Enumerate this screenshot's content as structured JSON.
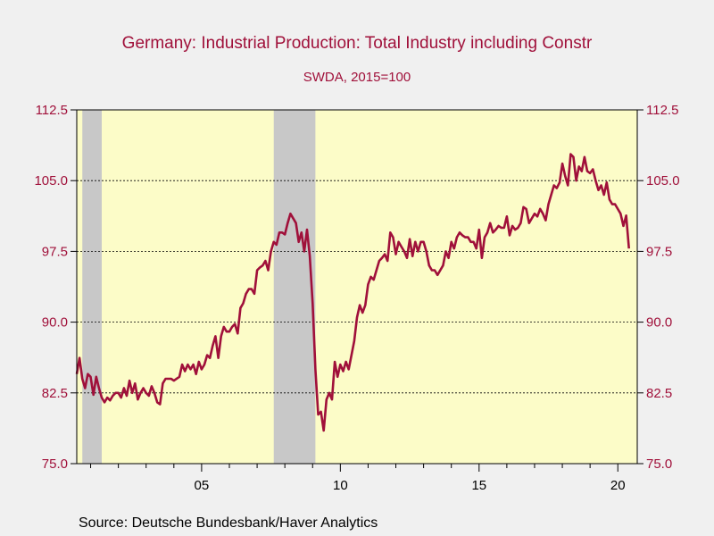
{
  "chart_data": {
    "type": "line",
    "title": "Germany: Industrial Production: Total Industry including Constr",
    "subtitle": "SWDA, 2015=100",
    "source": "Source:  Deutsche Bundesbank/Haver Analytics",
    "ylim": [
      75.0,
      112.5
    ],
    "yticks": [
      "75.0",
      "82.5",
      "90.0",
      "97.5",
      "105.0",
      "112.5"
    ],
    "y_axis_both_sides": true,
    "xlim": [
      2000.5,
      2020.7
    ],
    "xticks": [
      {
        "value": 2005,
        "label": "05"
      },
      {
        "value": 2010,
        "label": "10"
      },
      {
        "value": 2015,
        "label": "15"
      },
      {
        "value": 2020,
        "label": "20"
      }
    ],
    "grid": "horizontal dashed",
    "recessions": [
      [
        2000.7,
        2001.4
      ],
      [
        2007.6,
        2009.1
      ]
    ],
    "colors": {
      "line": "#a0103a",
      "plot_bg": "#fcfcc8",
      "recession": "#c8c8c8",
      "text": "#a0103a"
    },
    "series": [
      {
        "points": [
          [
            2000.5,
            84.5
          ],
          [
            2000.6,
            86.2
          ],
          [
            2000.7,
            84.0
          ],
          [
            2000.8,
            83.0
          ],
          [
            2000.9,
            84.5
          ],
          [
            2001.0,
            84.2
          ],
          [
            2001.1,
            82.3
          ],
          [
            2001.2,
            84.2
          ],
          [
            2001.3,
            83.0
          ],
          [
            2001.4,
            82.0
          ],
          [
            2001.5,
            81.5
          ],
          [
            2001.6,
            82.0
          ],
          [
            2001.7,
            81.7
          ],
          [
            2001.8,
            82.2
          ],
          [
            2001.9,
            82.5
          ],
          [
            2002.0,
            82.5
          ],
          [
            2002.1,
            82.0
          ],
          [
            2002.2,
            83.0
          ],
          [
            2002.3,
            82.2
          ],
          [
            2002.4,
            83.8
          ],
          [
            2002.5,
            82.5
          ],
          [
            2002.6,
            83.5
          ],
          [
            2002.7,
            81.8
          ],
          [
            2002.8,
            82.5
          ],
          [
            2002.9,
            83.0
          ],
          [
            2003.0,
            82.5
          ],
          [
            2003.1,
            82.2
          ],
          [
            2003.2,
            83.2
          ],
          [
            2003.3,
            82.5
          ],
          [
            2003.4,
            81.5
          ],
          [
            2003.5,
            81.3
          ],
          [
            2003.6,
            83.5
          ],
          [
            2003.7,
            84.0
          ],
          [
            2003.8,
            84.0
          ],
          [
            2003.9,
            84.0
          ],
          [
            2004.0,
            83.8
          ],
          [
            2004.2,
            84.2
          ],
          [
            2004.3,
            85.5
          ],
          [
            2004.4,
            84.8
          ],
          [
            2004.5,
            85.5
          ],
          [
            2004.6,
            85.0
          ],
          [
            2004.7,
            85.5
          ],
          [
            2004.8,
            84.5
          ],
          [
            2004.9,
            85.8
          ],
          [
            2005.0,
            85.0
          ],
          [
            2005.1,
            85.5
          ],
          [
            2005.2,
            86.5
          ],
          [
            2005.3,
            86.2
          ],
          [
            2005.4,
            87.5
          ],
          [
            2005.5,
            88.5
          ],
          [
            2005.6,
            86.2
          ],
          [
            2005.7,
            88.5
          ],
          [
            2005.8,
            89.5
          ],
          [
            2005.9,
            89.0
          ],
          [
            2006.0,
            89.0
          ],
          [
            2006.1,
            89.5
          ],
          [
            2006.2,
            89.8
          ],
          [
            2006.3,
            88.8
          ],
          [
            2006.4,
            91.5
          ],
          [
            2006.5,
            92.0
          ],
          [
            2006.6,
            93.0
          ],
          [
            2006.7,
            93.5
          ],
          [
            2006.8,
            93.5
          ],
          [
            2006.9,
            93.0
          ],
          [
            2007.0,
            95.5
          ],
          [
            2007.1,
            95.8
          ],
          [
            2007.2,
            96.0
          ],
          [
            2007.3,
            96.5
          ],
          [
            2007.4,
            95.5
          ],
          [
            2007.5,
            97.5
          ],
          [
            2007.6,
            98.5
          ],
          [
            2007.7,
            98.2
          ],
          [
            2007.8,
            99.5
          ],
          [
            2007.9,
            99.5
          ],
          [
            2008.0,
            99.3
          ],
          [
            2008.1,
            100.5
          ],
          [
            2008.2,
            101.5
          ],
          [
            2008.3,
            101.0
          ],
          [
            2008.4,
            100.5
          ],
          [
            2008.5,
            98.5
          ],
          [
            2008.6,
            99.5
          ],
          [
            2008.7,
            97.5
          ],
          [
            2008.8,
            99.8
          ],
          [
            2008.9,
            97.0
          ],
          [
            2009.0,
            92.0
          ],
          [
            2009.1,
            85.0
          ],
          [
            2009.2,
            80.2
          ],
          [
            2009.3,
            80.5
          ],
          [
            2009.4,
            78.5
          ],
          [
            2009.5,
            81.8
          ],
          [
            2009.6,
            82.5
          ],
          [
            2009.7,
            81.8
          ],
          [
            2009.8,
            85.8
          ],
          [
            2009.9,
            84.2
          ],
          [
            2010.0,
            85.5
          ],
          [
            2010.1,
            84.8
          ],
          [
            2010.2,
            85.8
          ],
          [
            2010.3,
            85.0
          ],
          [
            2010.4,
            86.5
          ],
          [
            2010.5,
            88.0
          ],
          [
            2010.6,
            90.5
          ],
          [
            2010.7,
            91.8
          ],
          [
            2010.8,
            91.0
          ],
          [
            2010.9,
            91.8
          ],
          [
            2011.0,
            94.0
          ],
          [
            2011.1,
            94.8
          ],
          [
            2011.2,
            94.5
          ],
          [
            2011.3,
            95.5
          ],
          [
            2011.4,
            96.5
          ],
          [
            2011.5,
            96.8
          ],
          [
            2011.6,
            97.2
          ],
          [
            2011.7,
            96.5
          ],
          [
            2011.8,
            99.5
          ],
          [
            2011.9,
            99.0
          ],
          [
            2012.0,
            97.2
          ],
          [
            2012.1,
            98.5
          ],
          [
            2012.2,
            98.0
          ],
          [
            2012.3,
            97.5
          ],
          [
            2012.4,
            96.8
          ],
          [
            2012.5,
            98.8
          ],
          [
            2012.6,
            97.0
          ],
          [
            2012.7,
            98.5
          ],
          [
            2012.8,
            97.5
          ],
          [
            2012.9,
            98.5
          ],
          [
            2013.0,
            98.5
          ],
          [
            2013.1,
            97.5
          ],
          [
            2013.2,
            96.0
          ],
          [
            2013.3,
            95.5
          ],
          [
            2013.4,
            95.5
          ],
          [
            2013.5,
            95.0
          ],
          [
            2013.6,
            95.5
          ],
          [
            2013.7,
            96.0
          ],
          [
            2013.8,
            97.5
          ],
          [
            2013.9,
            96.8
          ],
          [
            2014.0,
            98.5
          ],
          [
            2014.1,
            97.8
          ],
          [
            2014.2,
            99.0
          ],
          [
            2014.3,
            99.5
          ],
          [
            2014.4,
            99.2
          ],
          [
            2014.5,
            99.0
          ],
          [
            2014.6,
            99.0
          ],
          [
            2014.7,
            98.5
          ],
          [
            2014.8,
            98.5
          ],
          [
            2014.9,
            97.8
          ],
          [
            2015.0,
            99.8
          ],
          [
            2015.1,
            96.8
          ],
          [
            2015.2,
            99.0
          ],
          [
            2015.3,
            99.5
          ],
          [
            2015.4,
            100.5
          ],
          [
            2015.5,
            99.5
          ],
          [
            2015.6,
            99.8
          ],
          [
            2015.7,
            100.2
          ],
          [
            2015.8,
            100.0
          ],
          [
            2015.9,
            100.0
          ],
          [
            2016.0,
            101.2
          ],
          [
            2016.1,
            99.2
          ],
          [
            2016.2,
            100.2
          ],
          [
            2016.3,
            99.8
          ],
          [
            2016.4,
            100.0
          ],
          [
            2016.5,
            100.5
          ],
          [
            2016.6,
            102.2
          ],
          [
            2016.7,
            102.0
          ],
          [
            2016.8,
            100.5
          ],
          [
            2016.9,
            101.0
          ],
          [
            2017.0,
            101.5
          ],
          [
            2017.1,
            101.2
          ],
          [
            2017.2,
            102.0
          ],
          [
            2017.3,
            101.5
          ],
          [
            2017.4,
            100.8
          ],
          [
            2017.5,
            102.5
          ],
          [
            2017.6,
            103.5
          ],
          [
            2017.7,
            104.5
          ],
          [
            2017.8,
            104.2
          ],
          [
            2017.9,
            104.8
          ],
          [
            2018.0,
            106.8
          ],
          [
            2018.1,
            105.5
          ],
          [
            2018.2,
            104.5
          ],
          [
            2018.3,
            107.8
          ],
          [
            2018.4,
            107.5
          ],
          [
            2018.5,
            105.0
          ],
          [
            2018.6,
            106.5
          ],
          [
            2018.7,
            106.0
          ],
          [
            2018.8,
            107.5
          ],
          [
            2018.9,
            106.0
          ],
          [
            2019.0,
            105.8
          ],
          [
            2019.1,
            106.2
          ],
          [
            2019.2,
            105.0
          ],
          [
            2019.3,
            104.0
          ],
          [
            2019.4,
            104.5
          ],
          [
            2019.5,
            103.5
          ],
          [
            2019.6,
            104.8
          ],
          [
            2019.7,
            103.0
          ],
          [
            2019.8,
            102.5
          ],
          [
            2019.9,
            102.5
          ],
          [
            2020.0,
            102.0
          ],
          [
            2020.1,
            101.5
          ],
          [
            2020.2,
            100.2
          ],
          [
            2020.3,
            101.3
          ],
          [
            2020.4,
            97.8
          ]
        ]
      }
    ]
  }
}
